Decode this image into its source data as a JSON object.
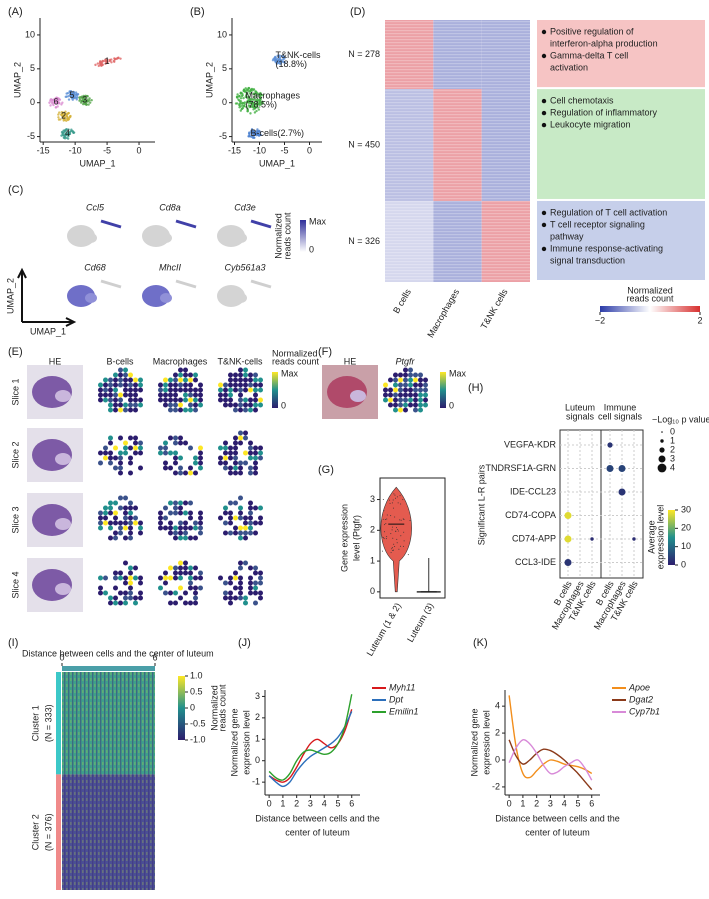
{
  "panel_labels": [
    "(A)",
    "(B)",
    "(C)",
    "(D)",
    "(E)",
    "(F)",
    "(G)",
    "(H)",
    "(I)",
    "(J)",
    "(K)"
  ],
  "chart_data": [
    {
      "type": "scatter",
      "xlabel": "UMAP_1",
      "ylabel": "UMAP_2",
      "xlim": [
        -15.5,
        2.5
      ],
      "ylim": [
        -5.8,
        12.5
      ],
      "xticks": [
        -15,
        -10,
        -5,
        0
      ],
      "yticks": [
        -5,
        0,
        5,
        10
      ],
      "clusters": [
        {
          "label": "1",
          "x": -5,
          "y": 6,
          "color": "#e06666"
        },
        {
          "label": "2",
          "x": -11.8,
          "y": -2,
          "color": "#d4b23a"
        },
        {
          "label": "3",
          "x": -8.5,
          "y": 0.3,
          "color": "#52a447"
        },
        {
          "label": "4",
          "x": -11.2,
          "y": -4.6,
          "color": "#3a9b8c"
        },
        {
          "label": "5",
          "x": -10.5,
          "y": 1,
          "color": "#5a8fd6"
        },
        {
          "label": "6",
          "x": -13,
          "y": 0,
          "color": "#d98ad0"
        }
      ]
    },
    {
      "type": "scatter",
      "xlabel": "UMAP_1",
      "ylabel": "UMAP_2",
      "xlim": [
        -15.5,
        2.5
      ],
      "ylim": [
        -5.8,
        12.5
      ],
      "xticks": [
        -15,
        -10,
        -5,
        0
      ],
      "yticks": [
        -5,
        0,
        5,
        10
      ],
      "clusters": [
        {
          "label": "T&NK-cells\n(18.8%)",
          "x": -6,
          "y": 6.3,
          "color": "#5b8fd6"
        },
        {
          "label": "Macrophages\n(78.5%)",
          "x": -12,
          "y": 0.3,
          "color": "#44b044"
        },
        {
          "label": "B-cells(2.7%)",
          "x": -11,
          "y": -4.6,
          "color": "#4a7fd0"
        }
      ]
    },
    {
      "type": "feature",
      "genes": [
        "Ccl5",
        "Cd8a",
        "Cd3e",
        "Cd68",
        "MhcII",
        "Cyb561a3"
      ],
      "colorbar_title": [
        "Normalized",
        "reads count"
      ],
      "colorbar_labels": [
        "Max",
        "0"
      ],
      "xlabel": "UMAP_1",
      "ylabel": "UMAP_2"
    },
    {
      "type": "heatmap",
      "row_labels": [
        "N = 278",
        "N = 450",
        "N = 326"
      ],
      "row_counts": [
        278,
        450,
        326
      ],
      "columns": [
        "B cells",
        "Macrophages",
        "T&NK cells"
      ],
      "values": [
        [
          1.2,
          -1,
          -1
        ],
        [
          -0.8,
          1.2,
          -1
        ],
        [
          -0.5,
          -1,
          1.2
        ]
      ],
      "clim": [
        -2,
        2
      ],
      "cticks": [
        {
          "value": -2,
          "label": "−2"
        },
        2
      ],
      "colorbar_title": [
        "Normalized",
        "reads count"
      ],
      "terms": [
        [
          [
            "Positive regulation of",
            "interferon-alpha production"
          ],
          [
            "Gamma-delta T cell",
            "activation"
          ]
        ],
        [
          [
            "Cell  chemotaxis"
          ],
          [
            "Regulation of inflammatory"
          ],
          [
            "Leukocyte migration"
          ]
        ],
        [
          [
            "Regulation of T cell activation"
          ],
          [
            "T cell receptor signaling",
            "pathway"
          ],
          [
            "Immune response-activating",
            "signal transduction"
          ]
        ]
      ]
    },
    {
      "type": "spatial",
      "columns": [
        "HE",
        "B-cells",
        "Macrophages",
        "T&NK-cells"
      ],
      "rows": [
        "Slice 1",
        "Slice 2",
        "Slice 3",
        "Slice 4"
      ],
      "colorbar_title": [
        "Normalized",
        "reads count"
      ],
      "colorbar_labels": [
        "Max",
        "0"
      ]
    },
    {
      "type": "spatial",
      "columns": [
        "HE",
        "Ptgfr"
      ],
      "rows": [],
      "colorbar_title": [
        "Normalized",
        "reads count"
      ],
      "colorbar_labels": [
        "Max",
        "0"
      ]
    },
    {
      "type": "violin",
      "ylabel": [
        "Gene expression",
        "level (Ptgfr)"
      ],
      "categories": [
        "Luteum (1 & 2)",
        "Luteum (3)"
      ],
      "values": [
        2.2,
        0
      ],
      "ylim": [
        -0.2,
        3.7
      ],
      "yticks": [
        0,
        1,
        2,
        3
      ]
    },
    {
      "type": "dotplot",
      "ylabel": "Significant L-R pairs",
      "groups": [
        [
          "Luteum",
          "signals"
        ],
        [
          "Immune",
          "cell signals"
        ]
      ],
      "columns": [
        "B cells",
        "Macrophages",
        "T&NK cells",
        "B cells",
        "Macrophages",
        "T&NK cells"
      ],
      "rows": [
        "VEGFA-KDR",
        "TNDRSF1A-GRN",
        "IDE-CCL23",
        "CD74-COPA",
        "CD74-APP",
        "CCL3-IDE"
      ],
      "points": [
        {
          "row": 0,
          "col": 3,
          "size": 2,
          "value": 3
        },
        {
          "row": 1,
          "col": 3,
          "size": 3,
          "value": 5
        },
        {
          "row": 1,
          "col": 4,
          "size": 3,
          "value": 5
        },
        {
          "row": 2,
          "col": 4,
          "size": 3,
          "value": 3
        },
        {
          "row": 3,
          "col": 0,
          "size": 3,
          "value": 28
        },
        {
          "row": 4,
          "col": 0,
          "size": 3,
          "value": 28
        },
        {
          "row": 4,
          "col": 2,
          "size": 1,
          "value": 2
        },
        {
          "row": 4,
          "col": 5,
          "size": 1,
          "value": 2
        },
        {
          "row": 5,
          "col": 0,
          "size": 3,
          "value": 3
        }
      ],
      "size_title": "−Log₁₀ p value",
      "size_ticks": [
        0,
        1,
        2,
        3,
        4
      ],
      "color_title": [
        "Average",
        "expression level"
      ],
      "clim": [
        0,
        30
      ],
      "cticks": [
        0,
        10,
        20,
        30
      ]
    },
    {
      "type": "matrix",
      "title": "Distance between cells and the center of luteum",
      "xlim": [
        0,
        6
      ],
      "xticks": [
        0,
        6
      ],
      "row_labels": [
        [
          "Cluster 1",
          "(N = 333)"
        ],
        [
          "Cluster 2",
          "(N = 376)"
        ]
      ],
      "row_counts": [
        333,
        376
      ],
      "clim": [
        -1,
        1
      ],
      "cticks": [
        {
          "value": 1,
          "label": "1.0"
        },
        0.5,
        0,
        -0.5,
        {
          "value": -1,
          "label": "-1.0"
        }
      ],
      "colorbar_title": [
        "Normalized",
        "reads count"
      ]
    },
    {
      "type": "line",
      "ylabel": [
        "Normalized gene",
        "expression level"
      ],
      "xlabel": [
        "Distance between cells and the",
        "center of luteum"
      ],
      "xlim": [
        -0.3,
        6.6
      ],
      "ylim": [
        -1.6,
        3.3
      ],
      "xticks": [
        0,
        1,
        2,
        3,
        4,
        5,
        6
      ],
      "yticks": [
        -1,
        0,
        1,
        2,
        3
      ],
      "x": [
        0,
        0.5,
        1,
        1.5,
        2,
        2.5,
        3,
        3.5,
        4,
        4.5,
        5,
        5.5,
        6
      ],
      "series": [
        {
          "name": "Myh11",
          "color": "#d7191c",
          "values": [
            -0.7,
            -0.9,
            -1.0,
            -0.8,
            -0.3,
            0.3,
            0.8,
            1.0,
            0.8,
            0.6,
            0.8,
            1.4,
            2.4
          ]
        },
        {
          "name": "Dpt",
          "color": "#2c6fbb",
          "values": [
            -0.7,
            -1.0,
            -1.2,
            -1.0,
            -0.5,
            -0.1,
            0.2,
            0.4,
            0.6,
            0.8,
            1.1,
            1.6,
            2.3
          ]
        },
        {
          "name": "Emilin1",
          "color": "#2ca02c",
          "values": [
            -0.5,
            -0.8,
            -0.9,
            -0.6,
            0.0,
            0.4,
            0.5,
            0.4,
            0.3,
            0.4,
            0.8,
            1.6,
            3.1
          ]
        }
      ]
    },
    {
      "type": "line",
      "ylabel": [
        "Normalized gene",
        "expression level"
      ],
      "xlabel": [
        "Distance between cells and the",
        "center of luteum"
      ],
      "xlim": [
        -0.3,
        6.6
      ],
      "ylim": [
        -2.6,
        5.2
      ],
      "xticks": [
        0,
        1,
        2,
        3,
        4,
        5,
        6
      ],
      "yticks": [
        -2,
        0,
        2,
        4
      ],
      "x": [
        0,
        0.5,
        1,
        1.5,
        2,
        2.5,
        3,
        3.5,
        4,
        4.5,
        5,
        5.5,
        6
      ],
      "series": [
        {
          "name": "Apoe",
          "color": "#f28e1c",
          "values": [
            4.8,
            1.0,
            -1.0,
            -1.3,
            -0.8,
            -0.3,
            0.0,
            -0.1,
            -0.3,
            -0.4,
            -0.5,
            -0.7,
            -1.0
          ]
        },
        {
          "name": "Dgat2",
          "color": "#8b3a1a",
          "values": [
            1.5,
            0.3,
            -0.3,
            0.0,
            0.5,
            0.8,
            0.7,
            0.4,
            0.0,
            -0.5,
            -1.0,
            -1.6,
            -2.2
          ]
        },
        {
          "name": "Cyp7b1",
          "color": "#d88ad8",
          "values": [
            -0.2,
            0.9,
            1.5,
            1.2,
            0.5,
            -0.4,
            -1.0,
            -0.9,
            -0.5,
            -0.2,
            0.0,
            -0.6,
            -1.5
          ]
        }
      ]
    }
  ]
}
